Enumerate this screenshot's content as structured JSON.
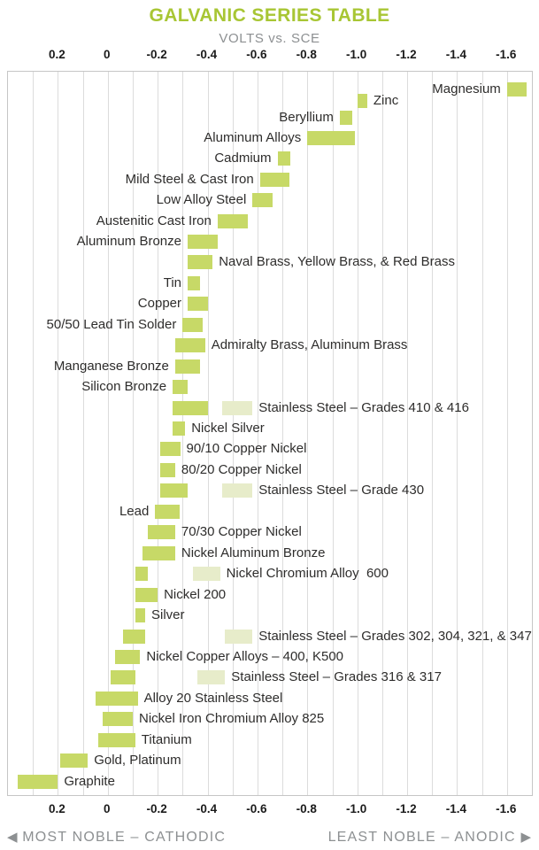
{
  "title": "GALVANIC SERIES TABLE",
  "subtitle": "VOLTS vs. SCE",
  "footer": {
    "left": "MOST NOBLE – CATHODIC",
    "right": "LEAST NOBLE – ANODIC",
    "left_arrow": "◀",
    "right_arrow": "▶"
  },
  "colors": {
    "title": "#a8c634",
    "muted": "#8d9092",
    "bar": "#c7d967",
    "bar_light": "#e7ecca",
    "grid": "#dcdcdc",
    "border": "#c6c6c6",
    "text": "#2e2d2c"
  },
  "chart_data": {
    "type": "bar",
    "orientation": "horizontal-range",
    "title": "GALVANIC SERIES TABLE",
    "xlabel": "VOLTS vs. SCE",
    "x_axis_ticks": [
      {
        "v": 0.2,
        "label": "0.2"
      },
      {
        "v": 0.0,
        "label": "0"
      },
      {
        "v": -0.2,
        "label": "-0.2"
      },
      {
        "v": -0.4,
        "label": "-0.4"
      },
      {
        "v": -0.6,
        "label": "-0.6"
      },
      {
        "v": -0.8,
        "label": "-0.8"
      },
      {
        "v": -1.0,
        "label": "-1.0"
      },
      {
        "v": -1.2,
        "label": "-1.2"
      },
      {
        "v": -1.4,
        "label": "-1.4"
      },
      {
        "v": -1.6,
        "label": "-1.6"
      }
    ],
    "x_range_volts": [
      0.4,
      -1.7
    ],
    "grid_step_volts": 0.1,
    "legend_position": "none",
    "rows": [
      {
        "label": "Magnesium",
        "range": [
          -1.6,
          -1.68
        ],
        "label_side": "left"
      },
      {
        "label": "Zinc",
        "range": [
          -1.0,
          -1.04
        ],
        "label_side": "right"
      },
      {
        "label": "Beryllium",
        "range": [
          -0.93,
          -0.98
        ],
        "label_side": "left"
      },
      {
        "label": "Aluminum Alloys",
        "range": [
          -0.8,
          -0.99
        ],
        "label_side": "left"
      },
      {
        "label": "Cadmium",
        "range": [
          -0.68,
          -0.73
        ],
        "label_side": "left"
      },
      {
        "label": "Mild Steel & Cast Iron",
        "range": [
          -0.61,
          -0.73
        ],
        "label_side": "left"
      },
      {
        "label": "Low Alloy Steel",
        "range": [
          -0.58,
          -0.66
        ],
        "label_side": "left"
      },
      {
        "label": "Austenitic Cast Iron",
        "range": [
          -0.44,
          -0.56
        ],
        "label_side": "left"
      },
      {
        "label": "Aluminum Bronze",
        "range": [
          -0.32,
          -0.44
        ],
        "label_side": "left"
      },
      {
        "label": "Naval Brass, Yellow Brass, & Red Brass",
        "range": [
          -0.32,
          -0.42
        ],
        "label_side": "right"
      },
      {
        "label": "Tin",
        "range": [
          -0.32,
          -0.37
        ],
        "label_side": "left"
      },
      {
        "label": "Copper",
        "range": [
          -0.32,
          -0.4
        ],
        "label_side": "left"
      },
      {
        "label": "50/50 Lead Tin Solder",
        "range": [
          -0.3,
          -0.38
        ],
        "label_side": "left"
      },
      {
        "label": "Admiralty Brass, Aluminum Brass",
        "range": [
          -0.27,
          -0.39
        ],
        "label_side": "right"
      },
      {
        "label": "Manganese Bronze",
        "range": [
          -0.27,
          -0.37
        ],
        "label_side": "left"
      },
      {
        "label": "Silicon Bronze",
        "range": [
          -0.26,
          -0.32
        ],
        "label_side": "left"
      },
      {
        "label": "Stainless Steel – Grades 410 & 416",
        "range": [
          -0.26,
          -0.4
        ],
        "active_range": [
          -0.46,
          -0.58
        ],
        "label_side": "right"
      },
      {
        "label": "Nickel Silver",
        "range": [
          -0.26,
          -0.31
        ],
        "label_side": "right"
      },
      {
        "label": "90/10 Copper Nickel",
        "range": [
          -0.21,
          -0.29
        ],
        "label_side": "right"
      },
      {
        "label": "80/20 Copper Nickel",
        "range": [
          -0.21,
          -0.27
        ],
        "label_side": "right"
      },
      {
        "label": "Stainless Steel – Grade 430",
        "range": [
          -0.21,
          -0.32
        ],
        "active_range": [
          -0.46,
          -0.58
        ],
        "label_side": "right"
      },
      {
        "label": "Lead",
        "range": [
          -0.19,
          -0.29
        ],
        "label_side": "left"
      },
      {
        "label": "70/30 Copper Nickel",
        "range": [
          -0.16,
          -0.27
        ],
        "label_side": "right"
      },
      {
        "label": "Nickel Aluminum Bronze",
        "range": [
          -0.14,
          -0.27
        ],
        "label_side": "right"
      },
      {
        "label": "Nickel Chromium Alloy  600",
        "range": [
          -0.11,
          -0.16
        ],
        "active_range": [
          -0.34,
          -0.45
        ],
        "label_side": "right"
      },
      {
        "label": "Nickel 200",
        "range": [
          -0.11,
          -0.2
        ],
        "label_side": "right"
      },
      {
        "label": "Silver",
        "range": [
          -0.11,
          -0.15
        ],
        "label_side": "right"
      },
      {
        "label": "Stainless Steel – Grades 302, 304, 321, & 347",
        "range": [
          -0.06,
          -0.15
        ],
        "active_range": [
          -0.47,
          -0.58
        ],
        "label_side": "right"
      },
      {
        "label": "Nickel Copper Alloys – 400, K500",
        "range": [
          -0.03,
          -0.13
        ],
        "label_side": "right"
      },
      {
        "label": "Stainless Steel – Grades 316 & 317",
        "range": [
          -0.01,
          -0.11
        ],
        "active_range": [
          -0.36,
          -0.47
        ],
        "label_side": "right"
      },
      {
        "label": "Alloy 20 Stainless Steel",
        "range": [
          0.05,
          -0.12
        ],
        "label_side": "right"
      },
      {
        "label": "Nickel Iron Chromium Alloy 825",
        "range": [
          0.02,
          -0.1
        ],
        "label_side": "right"
      },
      {
        "label": "Titanium",
        "range": [
          0.04,
          -0.11
        ],
        "label_side": "right"
      },
      {
        "label": "Gold, Platinum",
        "range": [
          0.19,
          0.08
        ],
        "label_side": "right"
      },
      {
        "label": "Graphite",
        "range": [
          0.36,
          0.2
        ],
        "label_side": "right"
      }
    ]
  }
}
